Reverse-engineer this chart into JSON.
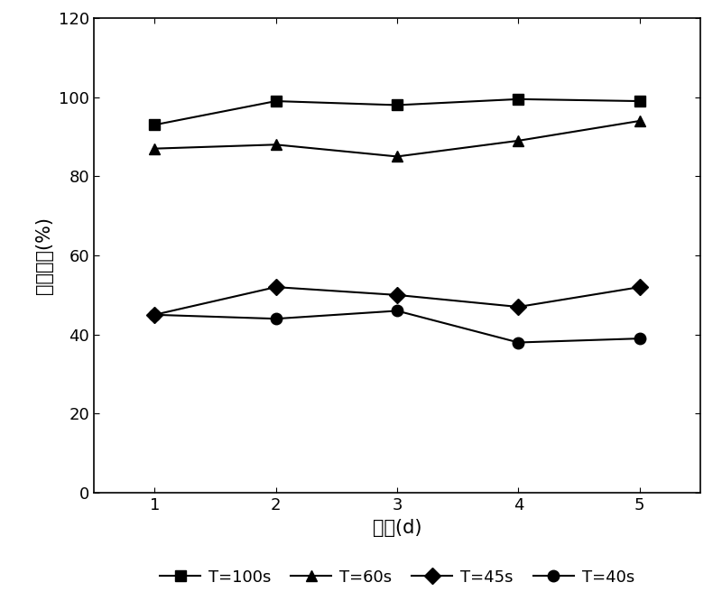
{
  "x": [
    1,
    2,
    3,
    4,
    5
  ],
  "series": {
    "T=100s": [
      93,
      99,
      98,
      99.5,
      99
    ],
    "T=60s": [
      87,
      88,
      85,
      89,
      94
    ],
    "T=45s": [
      45,
      52,
      50,
      47,
      52
    ],
    "T=40s": [
      45,
      44,
      46,
      38,
      39
    ]
  },
  "markers": {
    "T=100s": "s",
    "T=60s": "^",
    "T=45s": "D",
    "T=40s": "o"
  },
  "xlabel": "时间(d)",
  "ylabel": "去除效率(%)",
  "xlim": [
    0.5,
    5.5
  ],
  "ylim": [
    0,
    120
  ],
  "yticks": [
    0,
    20,
    40,
    60,
    80,
    100,
    120
  ],
  "xticks": [
    1,
    2,
    3,
    4,
    5
  ],
  "legend_order": [
    "T=100s",
    "T=60s",
    "T=45s",
    "T=40s"
  ],
  "markersize": 9,
  "linewidth": 1.5,
  "fontsize_label": 15,
  "fontsize_tick": 13,
  "fontsize_legend": 13
}
